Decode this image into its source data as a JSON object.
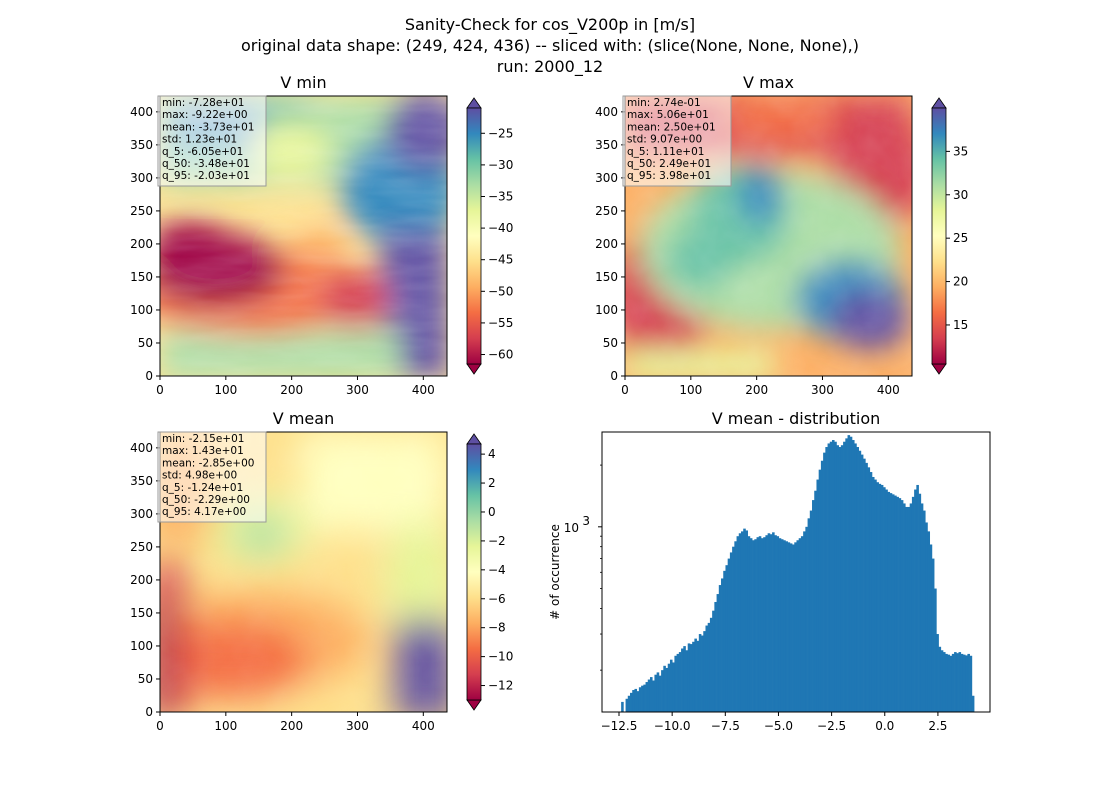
{
  "figure": {
    "title_lines": [
      "Sanity-Check for cos_V200p in [m/s]",
      "original data shape: (249, 424, 436) -- sliced with: (slice(None, None, None),)",
      "run: 2000_12"
    ]
  },
  "colors": {
    "colormap": "Spectral",
    "histogram_bar": "#1f77b4",
    "statbox_fill": "#ffffff"
  },
  "chart_data": [
    {
      "type": "heatmap",
      "title": "V min",
      "x_ticks": [
        0,
        100,
        200,
        300,
        400
      ],
      "y_ticks": [
        0,
        50,
        100,
        150,
        200,
        250,
        300,
        350,
        400
      ],
      "xlim": [
        0,
        436
      ],
      "ylim": [
        0,
        424
      ],
      "colorbar": {
        "range": [
          -61.5,
          -21
        ],
        "ticks": [
          -60,
          -55,
          -50,
          -45,
          -40,
          -35,
          -30,
          -25
        ],
        "extend": "both"
      },
      "stats": [
        "min: -7.28e+01",
        "max: -9.22e+00",
        "mean: -3.73e+01",
        "std: 1.23e+01",
        "q_5: -6.05e+01",
        "q_50: -3.48e+01",
        "q_95: -2.03e+01"
      ]
    },
    {
      "type": "heatmap",
      "title": "V max",
      "x_ticks": [
        0,
        100,
        200,
        300,
        400
      ],
      "y_ticks": [
        0,
        50,
        100,
        150,
        200,
        250,
        300,
        350,
        400
      ],
      "xlim": [
        0,
        436
      ],
      "ylim": [
        0,
        424
      ],
      "colorbar": {
        "range": [
          10.5,
          40
        ],
        "ticks": [
          15,
          20,
          25,
          30,
          35
        ],
        "extend": "both"
      },
      "stats": [
        "min: 2.74e-01",
        "max: 5.06e+01",
        "mean: 2.50e+01",
        "std: 9.07e+00",
        "q_5: 1.11e+01",
        "q_50: 2.49e+01",
        "q_95: 3.98e+01"
      ]
    },
    {
      "type": "heatmap",
      "title": "V mean",
      "x_ticks": [
        0,
        100,
        200,
        300,
        400
      ],
      "y_ticks": [
        0,
        50,
        100,
        150,
        200,
        250,
        300,
        350,
        400
      ],
      "xlim": [
        0,
        436
      ],
      "ylim": [
        0,
        424
      ],
      "colorbar": {
        "range": [
          -13,
          4.7
        ],
        "ticks": [
          -12,
          -10,
          -8,
          -6,
          -4,
          -2,
          0,
          2,
          4
        ],
        "extend": "both"
      },
      "stats": [
        "min: -2.15e+01",
        "max: 1.43e+01",
        "mean: -2.85e+00",
        "std: 4.98e+00",
        "q_5: -1.24e+01",
        "q_50: -2.29e+00",
        "q_95: 4.17e+00"
      ]
    },
    {
      "type": "bar",
      "title": "V mean - distribution",
      "ylabel": "# of occurrence",
      "yscale": "log",
      "xlim": [
        -13.3,
        4.95
      ],
      "x_ticks": [
        -12.5,
        -10.0,
        -7.5,
        -5.0,
        -2.5,
        0.0,
        2.5
      ],
      "x_tick_labels": [
        "−12.5",
        "−10.0",
        "−7.5",
        "−5.0",
        "−2.5",
        "0.0",
        "2.5"
      ],
      "y_ticks": [
        1000
      ],
      "y_tick_label_base": "10",
      "y_tick_label_exp": "3",
      "bin_range": [
        -12.4,
        4.2
      ],
      "bin_values": [
        140,
        125,
        145,
        150,
        155,
        160,
        162,
        158,
        165,
        168,
        170,
        175,
        180,
        185,
        178,
        190,
        195,
        188,
        200,
        210,
        205,
        215,
        225,
        218,
        235,
        240,
        245,
        255,
        262,
        250,
        270,
        268,
        275,
        285,
        278,
        300,
        295,
        310,
        330,
        340,
        360,
        390,
        430,
        470,
        520,
        560,
        610,
        650,
        700,
        750,
        800,
        850,
        900,
        930,
        950,
        980,
        960,
        900,
        880,
        860,
        870,
        890,
        900,
        880,
        890,
        910,
        930,
        920,
        940,
        910,
        900,
        880,
        870,
        860,
        850,
        840,
        830,
        820,
        840,
        860,
        880,
        900,
        950,
        1000,
        1100,
        1200,
        1350,
        1500,
        1700,
        1900,
        2100,
        2300,
        2450,
        2550,
        2600,
        2650,
        2600,
        2500,
        2450,
        2500,
        2600,
        2700,
        2800,
        2750,
        2650,
        2550,
        2450,
        2350,
        2250,
        2150,
        2050,
        1950,
        1850,
        1750,
        1700,
        1650,
        1620,
        1600,
        1560,
        1520,
        1480,
        1460,
        1440,
        1420,
        1400,
        1380,
        1350,
        1300,
        1250,
        1250,
        1300,
        1400,
        1520,
        1600,
        1450,
        1300,
        1200,
        1050,
        950,
        820,
        700,
        500,
        300,
        260,
        250,
        245,
        240,
        238,
        235,
        240,
        245,
        242,
        245,
        240,
        238,
        236,
        240,
        235,
        150
      ]
    }
  ]
}
